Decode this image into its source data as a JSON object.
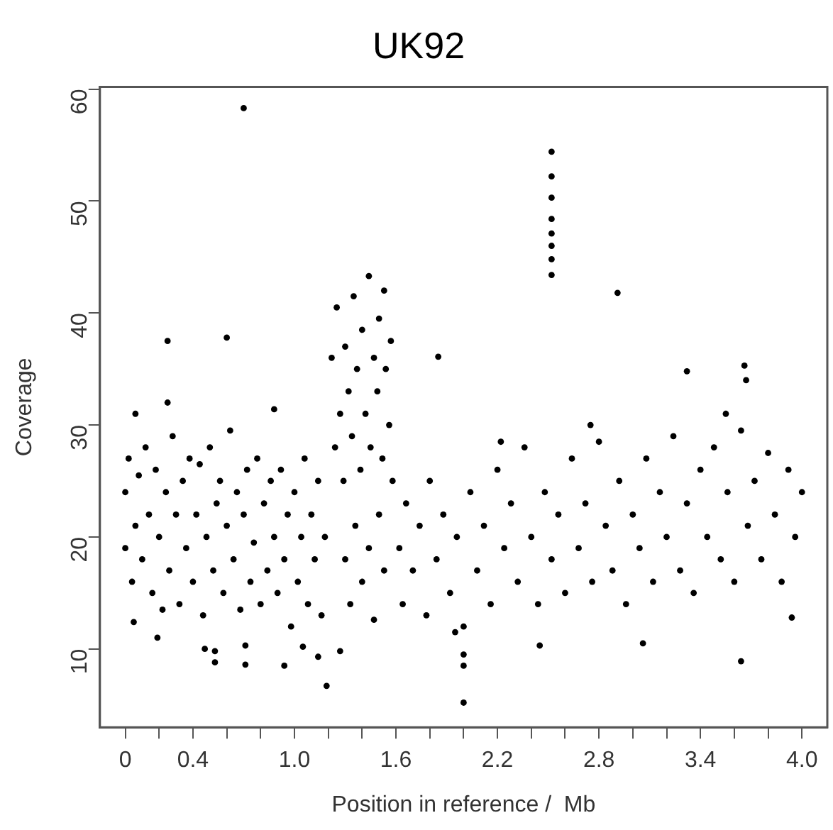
{
  "chart_data": {
    "type": "scatter",
    "title": "UK92",
    "xlabel": "Position in reference /  Mb",
    "ylabel": "Coverage",
    "color": "#000000",
    "marker": "circle",
    "xlim": [
      -0.15,
      4.15
    ],
    "ylim": [
      3,
      60.2
    ],
    "xticks": [
      0,
      {
        "value": 0.2,
        "label": null
      },
      0.4,
      {
        "value": 0.6,
        "label": null
      },
      {
        "value": 0.8,
        "label": null
      },
      {
        "value": 1.0,
        "label": "1.0"
      },
      {
        "value": 1.2,
        "label": null
      },
      {
        "value": 1.4,
        "label": null
      },
      1.6,
      {
        "value": 1.8,
        "label": null
      },
      {
        "value": 2.0,
        "label": null
      },
      2.2,
      {
        "value": 2.4,
        "label": null
      },
      {
        "value": 2.6,
        "label": null
      },
      2.8,
      {
        "value": 3.0,
        "label": null
      },
      {
        "value": 3.2,
        "label": null
      },
      3.4,
      {
        "value": 3.6,
        "label": null
      },
      {
        "value": 3.8,
        "label": null
      },
      {
        "value": 4.0,
        "label": "4.0"
      }
    ],
    "yticks": [
      10,
      20,
      30,
      40,
      50,
      60
    ],
    "x": [
      0,
      0,
      0.02,
      0.04,
      0.06,
      0.08,
      0.1,
      0.12,
      0.14,
      0.16,
      0.18,
      0.2,
      0.22,
      0.24,
      0.26,
      0.28,
      0.3,
      0.32,
      0.34,
      0.36,
      0.38,
      0.4,
      0.42,
      0.44,
      0.46,
      0.48,
      0.5,
      0.52,
      0.54,
      0.56,
      0.58,
      0.6,
      0.62,
      0.64,
      0.66,
      0.68,
      0.7,
      0.72,
      0.74,
      0.76,
      0.78,
      0.8,
      0.82,
      0.84,
      0.86,
      0.88,
      0.9,
      0.92,
      0.94,
      0.96,
      0.98,
      1.0,
      1.02,
      1.04,
      1.06,
      1.08,
      1.1,
      1.12,
      1.14,
      1.16,
      1.18,
      0.05,
      0.06,
      0.19,
      0.25,
      0.25,
      0.47,
      0.53,
      0.53,
      0.6,
      0.7,
      0.71,
      0.71,
      0.88,
      0.94,
      1.05,
      1.14,
      1.19,
      1.27,
      1.22,
      1.24,
      1.25,
      1.27,
      1.29,
      1.3,
      1.32,
      1.34,
      1.35,
      1.37,
      1.39,
      1.4,
      1.42,
      1.44,
      1.45,
      1.47,
      1.49,
      1.5,
      1.52,
      1.53,
      1.54,
      1.56,
      1.57,
      1.58,
      1.3,
      1.33,
      1.36,
      1.4,
      1.44,
      1.47,
      1.5,
      1.53,
      1.62,
      1.64,
      1.66,
      1.7,
      1.74,
      1.78,
      1.8,
      1.84,
      1.88,
      1.92,
      1.96,
      2.0,
      2.04,
      2.08,
      2.12,
      2.16,
      2.2,
      2.24,
      2.28,
      2.32,
      2.36,
      2.4,
      2.44,
      2.48,
      2.52,
      2.56,
      2.6,
      2.64,
      2.68,
      2.72,
      2.76,
      2.8,
      2.84,
      2.88,
      2.92,
      2.96,
      3.0,
      3.04,
      3.08,
      3.12,
      3.16,
      3.2,
      3.24,
      3.28,
      3.32,
      3.36,
      3.4,
      3.44,
      3.48,
      3.52,
      3.56,
      3.6,
      3.64,
      3.68,
      3.72,
      3.76,
      3.8,
      3.84,
      3.88,
      3.92,
      3.96,
      4.0,
      1.85,
      2.0,
      2.0,
      2.0,
      1.95,
      2.45,
      2.52,
      2.52,
      2.52,
      2.52,
      2.52,
      2.52,
      2.52,
      2.52,
      2.91,
      3.06,
      3.32,
      3.66,
      3.67,
      3.64,
      3.94,
      2.22,
      2.75,
      3.55
    ],
    "values": [
      19,
      24,
      27,
      16,
      21,
      25.5,
      18,
      28,
      22,
      15,
      26,
      20,
      13.5,
      24,
      17,
      29,
      22,
      14,
      25,
      19,
      27,
      16,
      22,
      26.5,
      13,
      20,
      28,
      17,
      23,
      25,
      15,
      21,
      29.5,
      18,
      24,
      13.5,
      22,
      26,
      16,
      19.5,
      27,
      14,
      23,
      17,
      25,
      20,
      15,
      26,
      18,
      22,
      12,
      24,
      16,
      20,
      27,
      14,
      22,
      18,
      25,
      13,
      20,
      12.4,
      31,
      11,
      37.5,
      32,
      10,
      8.8,
      9.8,
      37.8,
      58.3,
      8.6,
      10.3,
      31.4,
      8.5,
      10.2,
      9.3,
      6.7,
      9.8,
      36,
      28,
      40.5,
      31,
      25,
      37,
      33,
      29,
      41.5,
      35,
      26,
      38.5,
      31,
      43.3,
      28,
      36,
      33,
      39.5,
      27,
      42,
      35,
      30,
      37.5,
      25,
      18,
      14,
      21,
      16,
      19,
      12.6,
      22,
      17,
      19,
      14,
      23,
      17,
      21,
      13,
      25,
      18,
      22,
      15,
      20,
      12,
      24,
      17,
      21,
      14,
      26,
      19,
      23,
      16,
      28,
      20,
      14,
      24,
      18,
      22,
      15,
      27,
      19,
      23,
      16,
      28.5,
      21,
      17,
      25,
      14,
      22,
      19,
      27,
      16,
      24,
      20,
      29,
      17,
      23,
      15,
      26,
      20,
      28,
      18,
      24,
      16,
      29.5,
      21,
      25,
      18,
      27.5,
      22,
      16,
      26,
      20,
      24,
      36.1,
      5.2,
      8.5,
      9.5,
      11.5,
      10.3,
      54.4,
      52.2,
      50.3,
      48.4,
      47.1,
      46,
      44.8,
      43.4,
      41.8,
      10.5,
      34.8,
      35.3,
      34,
      8.9,
      12.8,
      28.5,
      30,
      31
    ]
  }
}
